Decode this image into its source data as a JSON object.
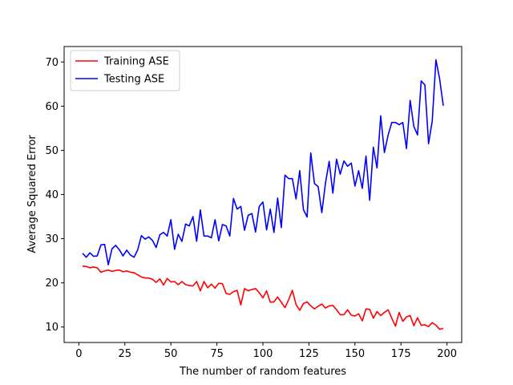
{
  "chart_data": {
    "type": "line",
    "title": "",
    "xlabel": "The number of random features",
    "ylabel": "Average Squared Error",
    "xlim": [
      -8,
      208
    ],
    "ylim": [
      6.5,
      73.5
    ],
    "xticks": [
      0,
      25,
      50,
      75,
      100,
      125,
      150,
      175,
      200
    ],
    "yticks": [
      10,
      20,
      30,
      40,
      50,
      60,
      70
    ],
    "grid": false,
    "legend_position": "top-left",
    "x": [
      2,
      4,
      6,
      8,
      10,
      12,
      14,
      16,
      18,
      20,
      22,
      24,
      26,
      28,
      30,
      32,
      34,
      36,
      38,
      40,
      42,
      44,
      46,
      48,
      50,
      52,
      54,
      56,
      58,
      60,
      62,
      64,
      66,
      68,
      70,
      72,
      74,
      76,
      78,
      80,
      82,
      84,
      86,
      88,
      90,
      92,
      94,
      96,
      98,
      100,
      102,
      104,
      106,
      108,
      110,
      112,
      114,
      116,
      118,
      120,
      122,
      124,
      126,
      128,
      130,
      132,
      134,
      136,
      138,
      140,
      142,
      144,
      146,
      148,
      150,
      152,
      154,
      156,
      158,
      160,
      162,
      164,
      166,
      168,
      170,
      172,
      174,
      176,
      178,
      180,
      182,
      184,
      186,
      188,
      190,
      192,
      194,
      196,
      198
    ],
    "series": [
      {
        "name": "Training ASE",
        "color": "#ff0000",
        "values": [
          23.8,
          23.7,
          23.4,
          23.6,
          23.4,
          22.4,
          22.7,
          22.9,
          22.6,
          22.8,
          22.9,
          22.5,
          22.7,
          22.4,
          22.3,
          21.8,
          21.3,
          21.1,
          21.1,
          20.8,
          20.1,
          20.9,
          19.5,
          21.0,
          20.2,
          20.3,
          19.6,
          20.3,
          19.6,
          19.4,
          19.3,
          20.3,
          18.2,
          20.3,
          18.9,
          19.7,
          18.8,
          19.9,
          19.8,
          17.6,
          17.4,
          18.0,
          18.3,
          15.0,
          18.7,
          18.2,
          18.5,
          18.7,
          17.8,
          16.6,
          18.2,
          15.6,
          15.7,
          16.8,
          15.6,
          14.4,
          16.2,
          18.3,
          15.1,
          13.8,
          15.3,
          15.7,
          14.8,
          14.1,
          14.7,
          15.2,
          14.3,
          14.8,
          14.9,
          13.9,
          12.8,
          12.8,
          13.9,
          12.7,
          12.5,
          13.0,
          11.4,
          14.1,
          14.0,
          12.0,
          13.5,
          12.6,
          13.3,
          13.9,
          12.0,
          10.2,
          13.3,
          11.3,
          12.3,
          12.6,
          10.3,
          12.1,
          10.4,
          10.5,
          10.1,
          11.0,
          10.4,
          9.5,
          9.7
        ]
      },
      {
        "name": "Testing ASE",
        "color": "#0000ff",
        "values": [
          26.7,
          25.8,
          26.8,
          26.0,
          26.1,
          28.6,
          28.7,
          24.1,
          27.7,
          28.5,
          27.5,
          26.1,
          27.4,
          26.3,
          25.8,
          27.5,
          30.7,
          29.9,
          30.4,
          29.6,
          28.0,
          30.9,
          31.4,
          30.6,
          34.3,
          27.6,
          31.0,
          29.4,
          33.3,
          32.9,
          35.0,
          29.4,
          36.5,
          30.6,
          30.6,
          30.2,
          34.3,
          29.5,
          33.2,
          32.9,
          30.6,
          39.1,
          36.7,
          37.3,
          31.9,
          35.3,
          35.7,
          31.5,
          37.3,
          38.3,
          32.0,
          36.7,
          31.4,
          39.2,
          32.5,
          44.4,
          43.6,
          43.6,
          39.0,
          45.4,
          36.6,
          34.9,
          49.4,
          42.5,
          41.8,
          35.9,
          42.6,
          47.5,
          40.3,
          48.0,
          44.6,
          47.6,
          46.4,
          47.1,
          41.9,
          45.4,
          41.4,
          48.7,
          38.7,
          50.7,
          46.0,
          57.8,
          49.5,
          53.4,
          56.3,
          56.3,
          55.8,
          56.3,
          50.4,
          61.3,
          55.4,
          53.5,
          65.7,
          64.8,
          51.5,
          56.7,
          70.5,
          66.2,
          60.1
        ]
      }
    ]
  }
}
